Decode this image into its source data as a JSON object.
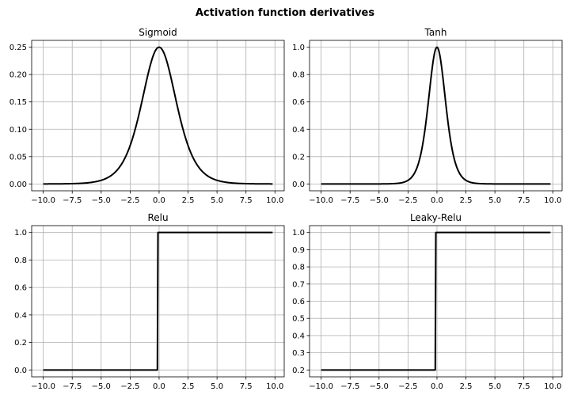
{
  "figure_title": "Activation function derivatives",
  "chart_data": [
    {
      "type": "line",
      "title": "Sigmoid",
      "function": "sigmoid-derivative",
      "x_range": [
        -10.0,
        9.8
      ],
      "xlim": [
        -11.0,
        10.8
      ],
      "ylim": [
        -0.0125,
        0.2625
      ],
      "xticks": [
        -10.0,
        -7.5,
        -5.0,
        -2.5,
        0.0,
        2.5,
        5.0,
        7.5,
        10.0
      ],
      "xtick_labels": [
        "−10.0",
        "−7.5",
        "−5.0",
        "−2.5",
        "0.0",
        "2.5",
        "5.0",
        "7.5",
        "10.0"
      ],
      "yticks": [
        0.0,
        0.05,
        0.1,
        0.15,
        0.2,
        0.25
      ],
      "ytick_labels": [
        "0.00",
        "0.05",
        "0.10",
        "0.15",
        "0.20",
        "0.25"
      ],
      "grid": true,
      "color": "#000000",
      "series": [
        {
          "x": [
            -10,
            -7.5,
            -5,
            -4,
            -3,
            -2.5,
            -2,
            -1.5,
            -1,
            -0.5,
            0,
            0.5,
            1,
            1.5,
            2,
            2.5,
            3,
            4,
            5,
            7.5,
            9.8
          ],
          "y": [
            0.0,
            0.0006,
            0.0066,
            0.0177,
            0.0452,
            0.0701,
            0.105,
            0.1491,
            0.1966,
            0.235,
            0.25,
            0.235,
            0.1966,
            0.1491,
            0.105,
            0.0701,
            0.0452,
            0.0177,
            0.0066,
            0.0006,
            0.0001
          ]
        }
      ]
    },
    {
      "type": "line",
      "title": "Tanh",
      "function": "tanh-derivative",
      "x_range": [
        -10.0,
        9.8
      ],
      "xlim": [
        -11.0,
        10.8
      ],
      "ylim": [
        -0.05,
        1.05
      ],
      "xticks": [
        -10.0,
        -7.5,
        -5.0,
        -2.5,
        0.0,
        2.5,
        5.0,
        7.5,
        10.0
      ],
      "xtick_labels": [
        "−10.0",
        "−7.5",
        "−5.0",
        "−2.5",
        "0.0",
        "2.5",
        "5.0",
        "7.5",
        "10.0"
      ],
      "yticks": [
        0.0,
        0.2,
        0.4,
        0.6,
        0.8,
        1.0
      ],
      "ytick_labels": [
        "0.0",
        "0.2",
        "0.4",
        "0.6",
        "0.8",
        "1.0"
      ],
      "grid": true,
      "color": "#000000",
      "series": [
        {
          "x": [
            -10,
            -5,
            -3,
            -2,
            -1.5,
            -1,
            -0.5,
            0,
            0.5,
            1,
            1.5,
            2,
            3,
            5,
            9.8
          ],
          "y": [
            0.0,
            0.0002,
            0.0099,
            0.0707,
            0.1807,
            0.42,
            0.7864,
            1.0,
            0.7864,
            0.42,
            0.1807,
            0.0707,
            0.0099,
            0.0002,
            0.0
          ]
        }
      ]
    },
    {
      "type": "line",
      "title": "Relu",
      "function": "relu-derivative",
      "x_range": [
        -10.0,
        9.8
      ],
      "xlim": [
        -11.0,
        10.8
      ],
      "ylim": [
        -0.05,
        1.05
      ],
      "xticks": [
        -10.0,
        -7.5,
        -5.0,
        -2.5,
        0.0,
        2.5,
        5.0,
        7.5,
        10.0
      ],
      "xtick_labels": [
        "−10.0",
        "−7.5",
        "−5.0",
        "−2.5",
        "0.0",
        "2.5",
        "5.0",
        "7.5",
        "10.0"
      ],
      "yticks": [
        0.0,
        0.2,
        0.4,
        0.6,
        0.8,
        1.0
      ],
      "ytick_labels": [
        "0.0",
        "0.2",
        "0.4",
        "0.6",
        "0.8",
        "1.0"
      ],
      "grid": true,
      "color": "#000000",
      "series": [
        {
          "x": [
            -10.0,
            -0.2,
            0.0,
            9.8
          ],
          "y": [
            0,
            0,
            1,
            1
          ]
        }
      ]
    },
    {
      "type": "line",
      "title": "Leaky-Relu",
      "function": "leaky-relu-derivative",
      "x_range": [
        -10.0,
        9.8
      ],
      "xlim": [
        -11.0,
        10.8
      ],
      "ylim": [
        0.16,
        1.04
      ],
      "xticks": [
        -10.0,
        -7.5,
        -5.0,
        -2.5,
        0.0,
        2.5,
        5.0,
        7.5,
        10.0
      ],
      "xtick_labels": [
        "−10.0",
        "−7.5",
        "−5.0",
        "−2.5",
        "0.0",
        "2.5",
        "5.0",
        "7.5",
        "10.0"
      ],
      "yticks": [
        0.2,
        0.3,
        0.4,
        0.5,
        0.6,
        0.7,
        0.8,
        0.9,
        1.0
      ],
      "ytick_labels": [
        "0.2",
        "0.3",
        "0.4",
        "0.5",
        "0.6",
        "0.7",
        "0.8",
        "0.9",
        "1.0"
      ],
      "grid": true,
      "color": "#000000",
      "series": [
        {
          "x": [
            -10.0,
            -0.2,
            0.0,
            9.8
          ],
          "y": [
            0.2,
            0.2,
            1,
            1
          ]
        }
      ]
    }
  ]
}
